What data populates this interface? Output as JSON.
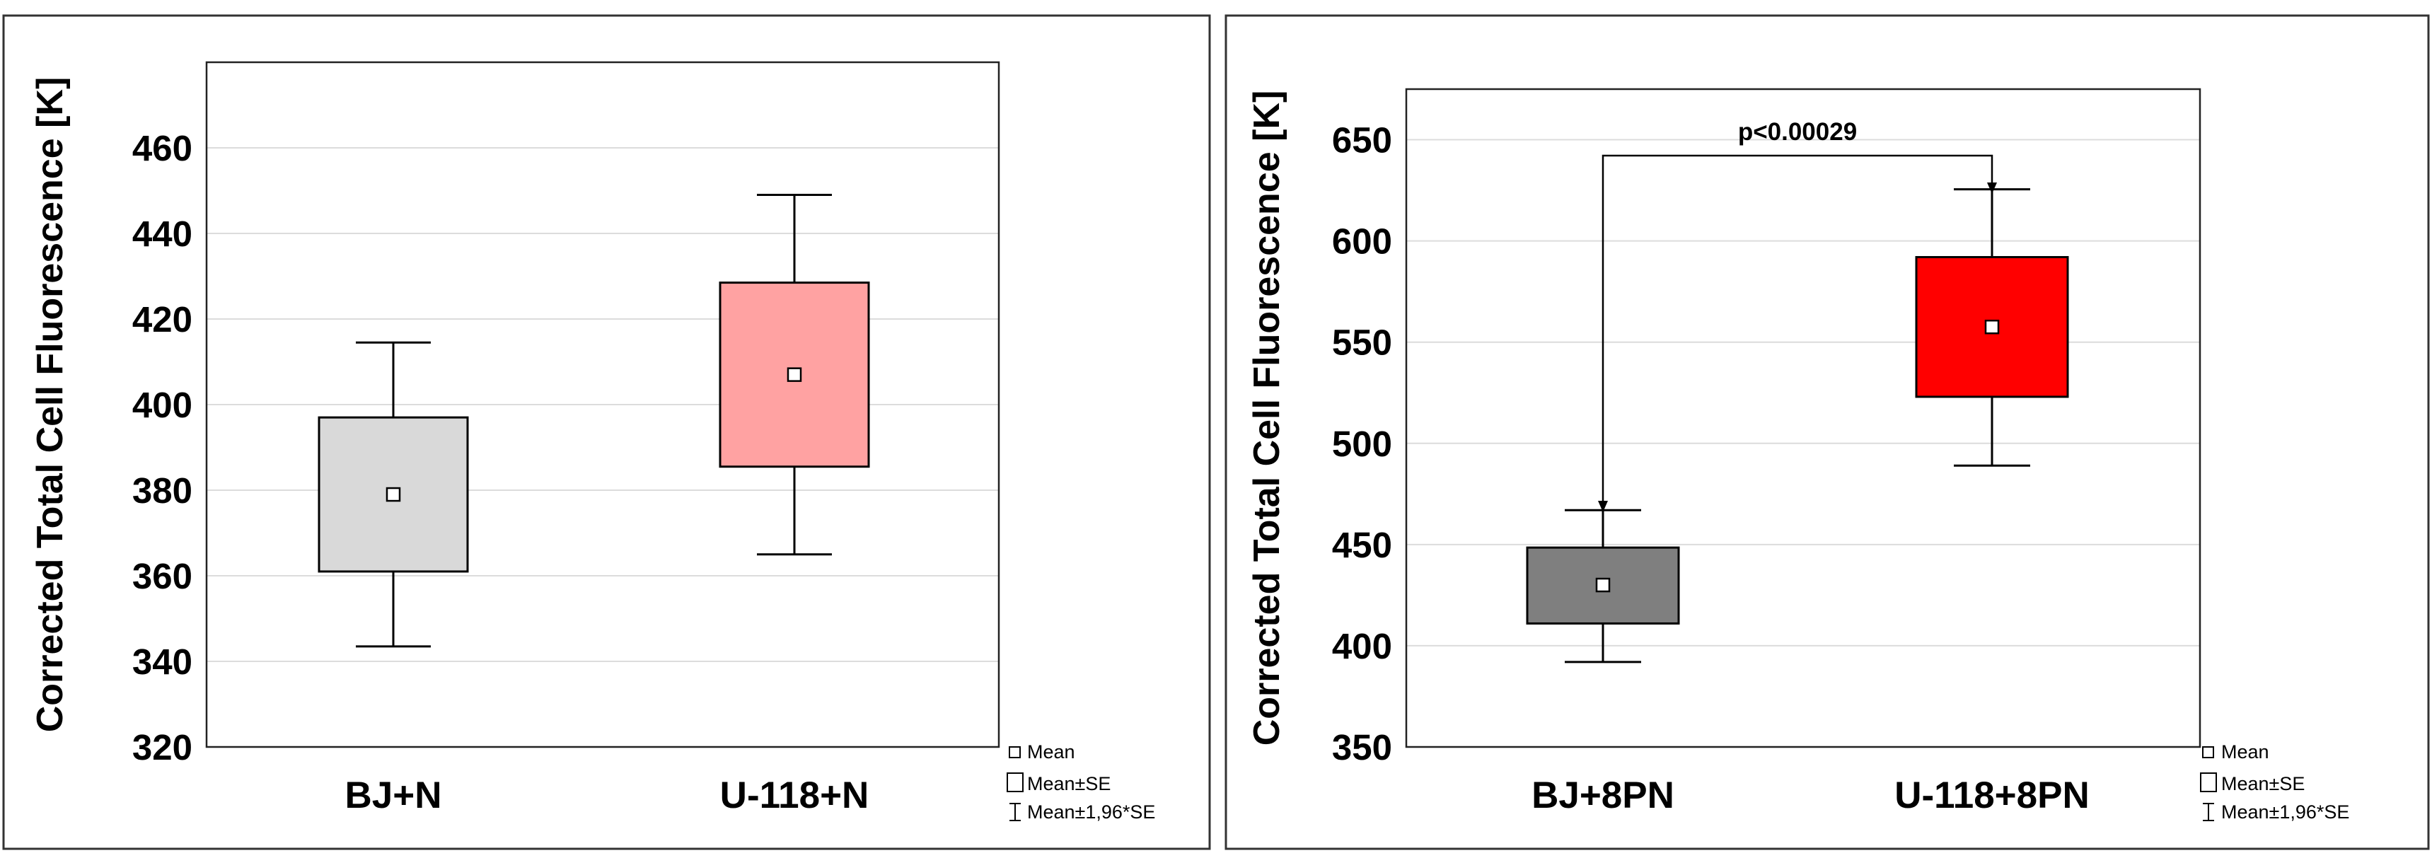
{
  "chart_data": [
    {
      "type": "boxplot",
      "ylabel": "Corrected Total Cell Fluorescence [K]",
      "ylim": [
        320,
        480
      ],
      "yticks": [
        320,
        340,
        360,
        380,
        400,
        420,
        440,
        460
      ],
      "grid": true,
      "categories": [
        "BJ+N",
        "U-118+N"
      ],
      "series": [
        {
          "name": "BJ+N",
          "mean": 379,
          "se_low": 361,
          "se_high": 397,
          "ci_low": 343.5,
          "ci_high": 414.5,
          "color": "#d9d9d9"
        },
        {
          "name": "U-118+N",
          "mean": 407,
          "se_low": 385.5,
          "se_high": 428.5,
          "ci_low": 365,
          "ci_high": 449,
          "color": "#ffa2a2"
        }
      ],
      "legend": {
        "placement": "bottom-right",
        "mean": "Mean",
        "se": "Mean±SE",
        "ci": "Mean±1,96*SE"
      }
    },
    {
      "type": "boxplot",
      "ylabel": "Corrected Total Cell Fluorescence [K]",
      "ylim": [
        350,
        675
      ],
      "yticks": [
        350,
        400,
        450,
        500,
        550,
        600,
        650
      ],
      "grid": true,
      "categories": [
        "BJ+8PN",
        "U-118+8PN"
      ],
      "series": [
        {
          "name": "BJ+8PN",
          "mean": 430,
          "se_low": 411,
          "se_high": 448.5,
          "ci_low": 392,
          "ci_high": 467,
          "color": "#7f7f7f"
        },
        {
          "name": "U-118+8PN",
          "mean": 557.5,
          "se_low": 523,
          "se_high": 592,
          "ci_low": 489,
          "ci_high": 625.5,
          "color": "#ff0000"
        }
      ],
      "annotation": {
        "text": "p<0.00029",
        "bracket_y": 650
      },
      "legend": {
        "placement": "bottom-right",
        "mean": "Mean",
        "se": "Mean±SE",
        "ci": "Mean±1,96*SE"
      }
    }
  ]
}
